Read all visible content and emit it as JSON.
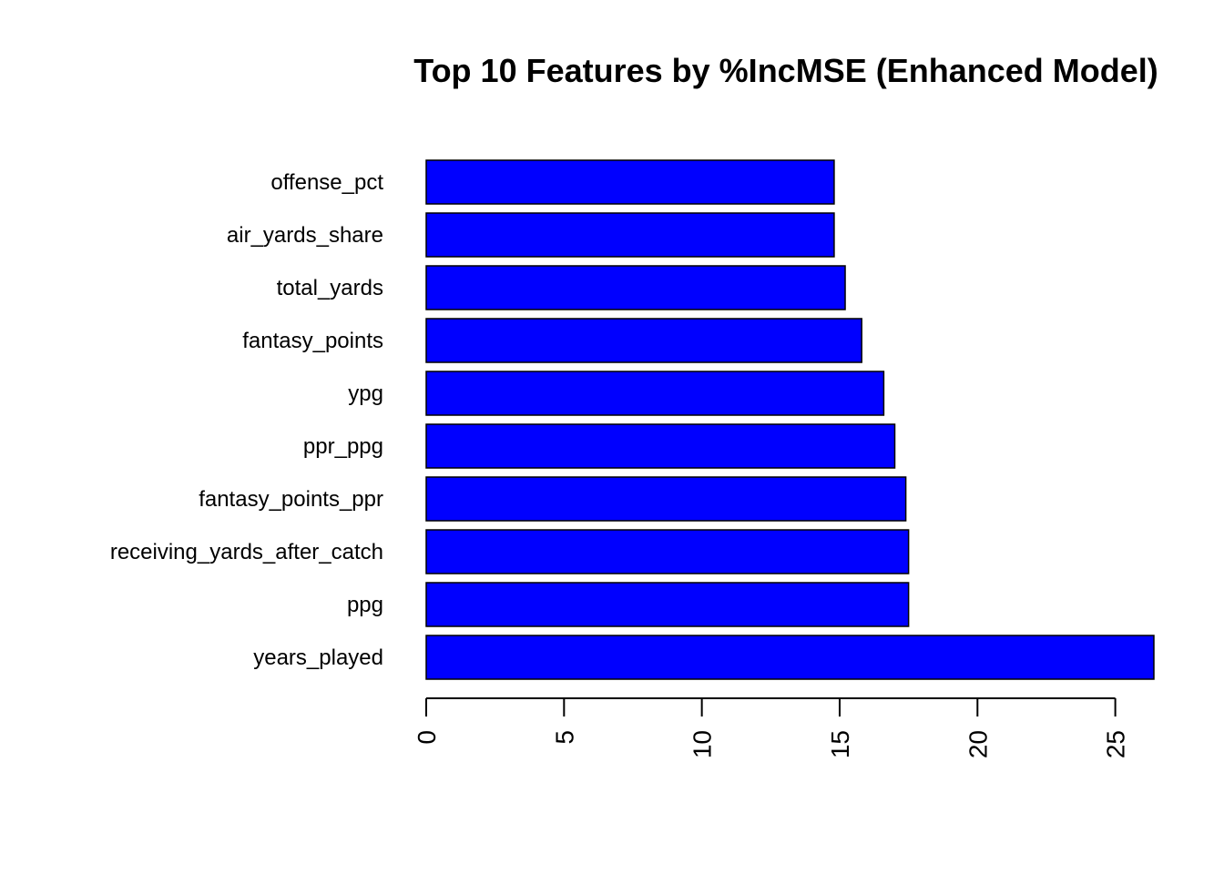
{
  "chart_data": {
    "type": "bar",
    "orientation": "horizontal",
    "title": "Top 10 Features by %IncMSE (Enhanced Model)",
    "xlabel": "",
    "ylabel": "",
    "categories": [
      "offense_pct",
      "air_yards_share",
      "total_yards",
      "fantasy_points",
      "ypg",
      "ppr_ppg",
      "fantasy_points_ppr",
      "receiving_yards_after_catch",
      "ppg",
      "years_played"
    ],
    "values": [
      14.8,
      14.8,
      15.2,
      15.8,
      16.6,
      17.0,
      17.4,
      17.5,
      17.5,
      26.4
    ],
    "xlim": [
      0,
      26.4
    ],
    "xticks": [
      "0",
      "5",
      "10",
      "15",
      "20",
      "25"
    ],
    "bar_color": "#0000ff",
    "grid": false
  }
}
